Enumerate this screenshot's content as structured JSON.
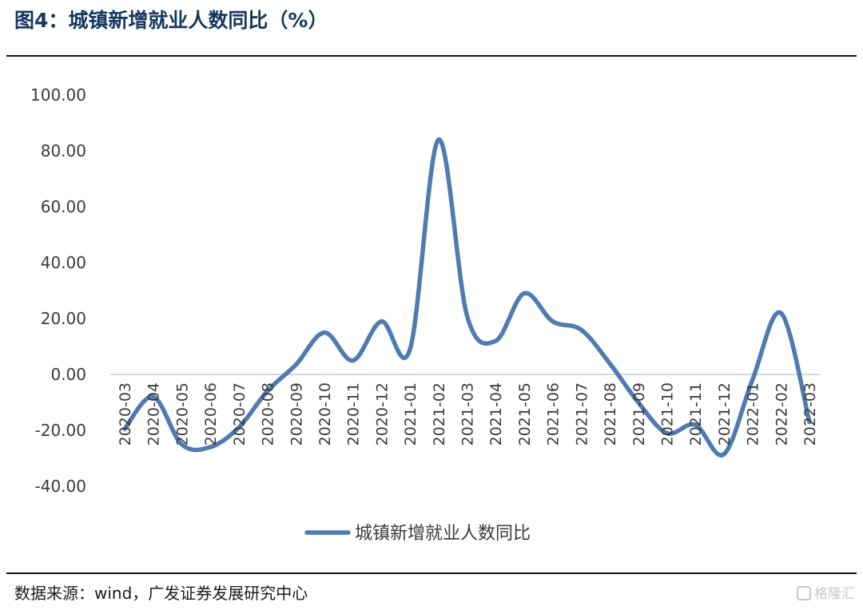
{
  "figure_title": "图4：城镇新增就业人数同比（%）",
  "source": "数据来源：wind，广发证券发展研究中心",
  "watermark": "格隆汇",
  "chart_data": {
    "type": "line",
    "x": [
      "2020-03",
      "2020-04",
      "2020-05",
      "2020-06",
      "2020-07",
      "2020-08",
      "2020-09",
      "2020-10",
      "2020-11",
      "2020-12",
      "2021-01",
      "2021-02",
      "2021-03",
      "2021-04",
      "2021-05",
      "2021-06",
      "2021-07",
      "2021-08",
      "2021-09",
      "2021-10",
      "2021-11",
      "2021-12",
      "2022-01",
      "2022-02",
      "2022-03"
    ],
    "series": [
      {
        "name": "城镇新增就业人数同比",
        "values": [
          -19.5,
          -8,
          -25,
          -26,
          -19,
          -6,
          3.5,
          15,
          5,
          19,
          9,
          84,
          21,
          12,
          29,
          19,
          16,
          4,
          -10,
          -21,
          -18,
          -28.5,
          -2,
          22,
          -17
        ]
      }
    ],
    "ylim": [
      -40,
      100
    ],
    "yticks": [
      "100.00",
      "80.00",
      "60.00",
      "40.00",
      "20.00",
      "0.00",
      "-20.00",
      "-40.00"
    ],
    "grid": false,
    "legend_position": "bottom",
    "line_color": "#4f7bb1"
  }
}
